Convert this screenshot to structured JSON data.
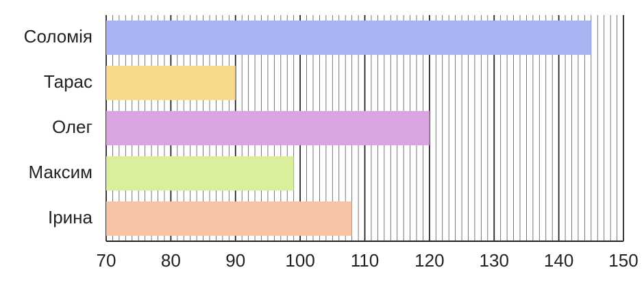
{
  "chart_data": {
    "type": "barh",
    "categories": [
      "Соломія",
      "Тарас",
      "Олег",
      "Максим",
      "Ірина"
    ],
    "values": [
      145,
      90,
      120,
      99,
      108
    ],
    "colors": [
      "#aab3f1",
      "#f9da8c",
      "#d9a4df",
      "#d9ef9b",
      "#f6c3a5"
    ],
    "xlim": [
      70,
      150
    ],
    "xticks": [
      70,
      80,
      90,
      100,
      110,
      120,
      130,
      140,
      150
    ],
    "grid": true,
    "minor_grid_step": 1
  }
}
